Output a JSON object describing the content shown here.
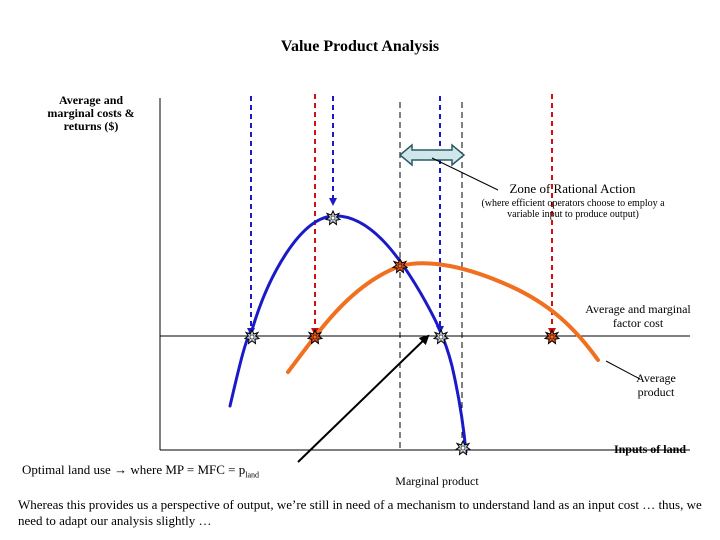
{
  "title": "Value Product Analysis",
  "y_axis_label": "Average and marginal costs & returns ($)",
  "x_axis_label": "Inputs of land",
  "zone": {
    "label": "Zone of Rational Action",
    "sublabel": "(where efficient operators choose to employ a variable input to produce output)"
  },
  "curves": {
    "factor_cost": "Average and marginal factor cost",
    "average_product": "Average product",
    "marginal_product": "Marginal product"
  },
  "optimal": {
    "prefix": "Optimal land use",
    "arrow": "→",
    "middle": "where MP = MFC = p",
    "subscript": "land"
  },
  "footer": "Whereas this provides us a perspective of output, we’re still in need of a mechanism to understand land as an input cost … thus, we need to adapt our analysis slightly …",
  "colors": {
    "marginal_product": "#1a1ac8",
    "average_product": "#f07020",
    "red_dashed": "#d01010",
    "blue_dashed": "#1a1ac8",
    "zone_arrow_fill": "#cfe6ea",
    "zone_arrow_stroke": "#2c5a66"
  }
}
